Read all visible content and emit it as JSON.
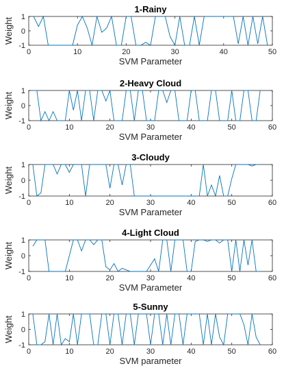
{
  "chart_data": [
    {
      "type": "line",
      "title": "1-Rainy",
      "xlabel": "SVM Parameter",
      "ylabel": "Weight",
      "xlim": [
        0,
        50
      ],
      "ylim": [
        -1,
        1
      ],
      "xticks": [
        0,
        10,
        20,
        30,
        40,
        50
      ],
      "yticks": [
        -1,
        0,
        1
      ],
      "grid": false,
      "line_color": "#0072BD",
      "series": [
        {
          "x": [
            1,
            2,
            3,
            4,
            5,
            6,
            7,
            8,
            9,
            10,
            11,
            12,
            13,
            14,
            15,
            16,
            17,
            18,
            19,
            20,
            21,
            22,
            23,
            24,
            25,
            26,
            27,
            28,
            29,
            30,
            31,
            32,
            33,
            34,
            35,
            36,
            37,
            38,
            39,
            40,
            41,
            42,
            43,
            44,
            45,
            46,
            47,
            48,
            49
          ],
          "y": [
            1,
            0.3,
            1,
            -1,
            -1,
            -1,
            -1,
            -1,
            -1,
            0.4,
            1,
            0.2,
            -1,
            1,
            -0.1,
            0.2,
            1,
            -1,
            -1,
            1,
            1,
            -1,
            -1,
            -0.8,
            -1,
            1,
            1,
            1,
            -0.4,
            -1,
            1,
            -1,
            -1,
            1,
            -1,
            1,
            1,
            1,
            1,
            1,
            1,
            1,
            -0.9,
            1,
            -1,
            1,
            -0.9,
            1,
            -1
          ]
        }
      ]
    },
    {
      "type": "line",
      "title": "2-Heavy Cloud",
      "xlabel": "SVM Parameter",
      "ylabel": "Weight",
      "xlim": [
        0,
        60
      ],
      "ylim": [
        -1,
        1
      ],
      "xticks": [
        0,
        10,
        20,
        30,
        40,
        50,
        60
      ],
      "yticks": [
        -1,
        0,
        1
      ],
      "grid": false,
      "line_color": "#0072BD",
      "series": [
        {
          "x": [
            1,
            2,
            3,
            4,
            5,
            6,
            7,
            8,
            9,
            10,
            11,
            12,
            13,
            14,
            15,
            16,
            17,
            18,
            19,
            20,
            21,
            22,
            23,
            24,
            25,
            26,
            27,
            28,
            29,
            30,
            31,
            32,
            33,
            34,
            35,
            36,
            37,
            38,
            39,
            40,
            41,
            42,
            43,
            44,
            45,
            46,
            47,
            48,
            49,
            50,
            51,
            52,
            53,
            54,
            55,
            56,
            57
          ],
          "y": [
            1,
            1,
            -1,
            -0.4,
            -1,
            -0.4,
            -1,
            -1,
            -1,
            1,
            -0.3,
            1,
            -1,
            1,
            1,
            -1,
            1,
            1,
            0.3,
            1,
            -1,
            -1,
            -1,
            1,
            1,
            -1,
            1,
            1,
            -1,
            -1,
            -1,
            1,
            1,
            0.2,
            1,
            1,
            -1,
            -1,
            -1,
            1,
            1,
            -1,
            -1,
            -1,
            1,
            1,
            -1,
            -1,
            -1,
            1,
            -1,
            -1,
            1,
            1,
            -1,
            -1,
            1
          ]
        }
      ]
    },
    {
      "type": "line",
      "title": "3-Cloudy",
      "xlabel": "SVM Parameter",
      "ylabel": "Weight",
      "xlim": [
        0,
        60
      ],
      "ylim": [
        -1,
        1
      ],
      "xticks": [
        0,
        10,
        20,
        30,
        40,
        50,
        60
      ],
      "yticks": [
        -1,
        0,
        1
      ],
      "grid": false,
      "line_color": "#0072BD",
      "series": [
        {
          "x": [
            1,
            2,
            3,
            4,
            5,
            6,
            7,
            8,
            9,
            10,
            11,
            12,
            13,
            14,
            15,
            16,
            17,
            18,
            19,
            20,
            21,
            22,
            23,
            24,
            25,
            26,
            27,
            28,
            29,
            30,
            31,
            32,
            33,
            34,
            35,
            36,
            37,
            38,
            39,
            40,
            41,
            42,
            43,
            44,
            45,
            46,
            47,
            48,
            49,
            50,
            51,
            52,
            53,
            54,
            55,
            56,
            57
          ],
          "y": [
            1,
            -1,
            -0.8,
            1,
            1,
            1,
            0.4,
            1,
            1,
            0.5,
            1,
            1,
            1,
            -1,
            1,
            1,
            1,
            1,
            1,
            -0.5,
            1,
            1,
            -0.3,
            1,
            1,
            -1,
            -1,
            -1,
            -1,
            -1,
            -1,
            -1,
            -1,
            -1,
            -1,
            -1,
            -1,
            -1,
            -1,
            -1,
            -1,
            -1,
            1,
            -1,
            -0.3,
            -1,
            0.3,
            -1,
            -1,
            0.1,
            1,
            1,
            1,
            1,
            0.9,
            1,
            1
          ]
        }
      ]
    },
    {
      "type": "line",
      "title": "4-Light Cloud",
      "xlabel": "SVM Parameter",
      "ylabel": "Weight",
      "xlim": [
        0,
        60
      ],
      "ylim": [
        -1,
        1
      ],
      "xticks": [
        0,
        10,
        20,
        30,
        40,
        50,
        60
      ],
      "yticks": [
        -1,
        0,
        1
      ],
      "grid": false,
      "line_color": "#0072BD",
      "series": [
        {
          "x": [
            1,
            2,
            3,
            4,
            5,
            6,
            7,
            8,
            9,
            10,
            11,
            12,
            13,
            14,
            15,
            16,
            17,
            18,
            19,
            20,
            21,
            22,
            23,
            24,
            25,
            26,
            27,
            28,
            29,
            30,
            31,
            32,
            33,
            34,
            35,
            36,
            37,
            38,
            39,
            40,
            41,
            42,
            43,
            44,
            45,
            46,
            47,
            48,
            49,
            50,
            51,
            52,
            53,
            54,
            55,
            56,
            57
          ],
          "y": [
            0.6,
            1,
            1,
            1,
            -1,
            -1,
            -1,
            -1,
            -1,
            0,
            1,
            1,
            0.3,
            1,
            1,
            0.7,
            1,
            1,
            -0.7,
            -0.9,
            -0.5,
            -1,
            -0.8,
            -0.9,
            -1,
            -1,
            -1,
            -1,
            -1,
            -0.6,
            -0.2,
            -1,
            1,
            1,
            -1,
            1,
            1,
            1,
            -1,
            -1,
            0.9,
            1,
            1,
            0.9,
            1,
            1,
            0.8,
            1,
            1,
            -1,
            1,
            -1,
            1,
            -0.6,
            1,
            -1,
            -1
          ]
        }
      ]
    },
    {
      "type": "line",
      "title": "5-Sunny",
      "xlabel": "SVM parameter",
      "ylabel": "Weight",
      "xlim": [
        0,
        60
      ],
      "ylim": [
        -1,
        1
      ],
      "xticks": [
        0,
        10,
        20,
        30,
        40,
        50,
        60
      ],
      "yticks": [
        -1,
        0,
        1
      ],
      "grid": false,
      "line_color": "#0072BD",
      "series": [
        {
          "x": [
            1,
            2,
            3,
            4,
            5,
            6,
            7,
            8,
            9,
            10,
            11,
            12,
            13,
            14,
            15,
            16,
            17,
            18,
            19,
            20,
            21,
            22,
            23,
            24,
            25,
            26,
            27,
            28,
            29,
            30,
            31,
            32,
            33,
            34,
            35,
            36,
            37,
            38,
            39,
            40,
            41,
            42,
            43,
            44,
            45,
            46,
            47,
            48,
            49,
            50,
            51,
            52,
            53,
            54,
            55,
            56,
            57
          ],
          "y": [
            1,
            -1,
            -1,
            -0.8,
            1,
            -1,
            1,
            -1,
            -0.6,
            -0.8,
            1,
            -1,
            1,
            1,
            1,
            -1,
            -1,
            1,
            1,
            -1,
            1,
            1,
            -1,
            1,
            1,
            -1,
            1,
            1,
            1,
            -1,
            1,
            1,
            -1,
            1,
            -1,
            1,
            1,
            -1,
            1,
            1,
            1,
            1,
            -1,
            1,
            -1,
            1,
            -0.5,
            -1,
            1,
            1,
            1,
            1,
            0.3,
            -1,
            1,
            -0.5,
            -1
          ]
        }
      ]
    }
  ]
}
